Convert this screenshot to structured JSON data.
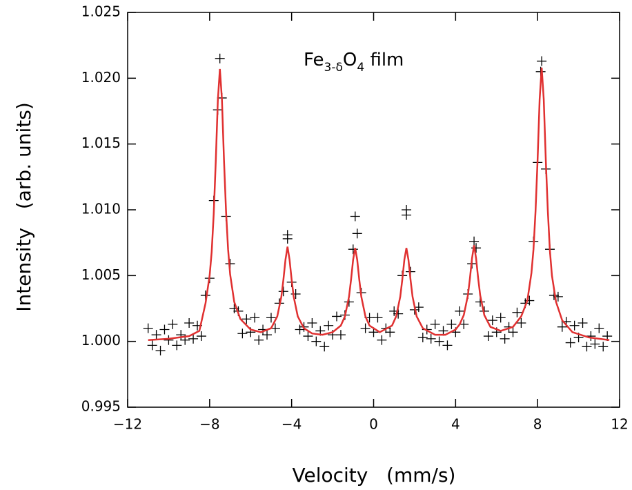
{
  "chart_data": {
    "type": "scatter",
    "annotation": [
      "Fe",
      "3-δ",
      "O",
      "4",
      " film"
    ],
    "x_label": "Velocity   (mm/s)",
    "y_label": "Intensity   (arb. units)",
    "xlim": [
      -12,
      12
    ],
    "ylim": [
      0.995,
      1.025
    ],
    "xticks": [
      {
        "value": -12,
        "label": "−12"
      },
      {
        "value": -8,
        "label": "−8"
      },
      {
        "value": -4,
        "label": "−4"
      },
      0,
      4,
      8,
      12
    ],
    "yticks": [
      0.995,
      {
        "value": 1,
        "label": "1.000"
      },
      1.005,
      {
        "value": 1.01,
        "label": "1.010"
      },
      1.015,
      {
        "value": 1.02,
        "label": "1.020"
      },
      1.025
    ],
    "series": [
      {
        "type": "scatter",
        "color": "#000000",
        "x": [
          -11.0,
          -10.8,
          -10.6,
          -10.4,
          -10.2,
          -10.0,
          -9.8,
          -9.6,
          -9.4,
          -9.2,
          -9.0,
          -8.8,
          -8.6,
          -8.4,
          -8.2,
          -8.0,
          -7.8,
          -7.6,
          -7.4,
          -7.2,
          -7.0,
          -6.8,
          -6.6,
          -6.4,
          -6.2,
          -6.0,
          -5.8,
          -5.6,
          -5.4,
          -5.2,
          -5.0,
          -4.8,
          -4.6,
          -4.4,
          -4.2,
          -4.0,
          -3.8,
          -3.6,
          -3.4,
          -3.2,
          -3.0,
          -2.8,
          -2.6,
          -2.4,
          -2.2,
          -2.0,
          -1.8,
          -1.6,
          -1.4,
          -1.2,
          -1.0,
          -0.8,
          -0.6,
          -0.4,
          -0.2,
          0.0,
          0.2,
          0.4,
          0.6,
          0.8,
          1.0,
          1.2,
          1.4,
          1.6,
          1.8,
          2.0,
          2.2,
          2.4,
          2.6,
          2.8,
          3.0,
          3.2,
          3.4,
          3.6,
          3.8,
          4.0,
          4.2,
          4.4,
          4.6,
          4.8,
          5.0,
          5.2,
          5.4,
          5.6,
          5.8,
          6.0,
          6.2,
          6.4,
          6.6,
          6.8,
          7.0,
          7.2,
          7.4,
          7.6,
          7.8,
          8.0,
          8.2,
          8.4,
          8.6,
          8.8,
          9.0,
          9.2,
          9.4,
          9.6,
          9.8,
          10.0,
          10.2,
          10.4,
          10.6,
          10.8,
          11.0,
          11.2,
          11.4,
          -7.5,
          -4.2,
          -0.9,
          1.6,
          4.9,
          8.15
        ],
        "values": [
          1.001,
          0.9997,
          1.0005,
          0.9993,
          1.0009,
          1.0001,
          1.0013,
          0.9997,
          1.0005,
          1.0001,
          1.0014,
          1.0002,
          1.0012,
          1.0004,
          1.0035,
          1.0048,
          1.0107,
          1.0176,
          1.0185,
          1.0095,
          1.0059,
          1.0025,
          1.0023,
          1.0006,
          1.0017,
          1.0007,
          1.0018,
          1.0001,
          1.0009,
          1.0005,
          1.0018,
          1.001,
          1.0029,
          1.0038,
          1.0078,
          1.0045,
          1.0036,
          1.0009,
          1.0011,
          1.0004,
          1.0014,
          1.0,
          1.0008,
          0.9996,
          1.0012,
          1.0005,
          1.0019,
          1.0005,
          1.002,
          1.003,
          1.007,
          1.0082,
          1.0037,
          1.001,
          1.0018,
          1.0007,
          1.0018,
          1.0001,
          1.001,
          1.0007,
          1.0023,
          1.0021,
          1.005,
          1.0096,
          1.0053,
          1.0024,
          1.0026,
          1.0003,
          1.0009,
          1.0002,
          1.0013,
          1.0,
          1.0008,
          0.9997,
          1.0013,
          1.0007,
          1.0023,
          1.0013,
          1.0036,
          1.0059,
          1.0071,
          1.003,
          1.0023,
          1.0004,
          1.0016,
          1.0007,
          1.0018,
          1.0002,
          1.0011,
          1.0007,
          1.0022,
          1.0014,
          1.0029,
          1.0031,
          1.0076,
          1.0136,
          1.0213,
          1.0131,
          1.007,
          1.0035,
          1.0034,
          1.0011,
          1.0015,
          0.9999,
          1.0012,
          1.0003,
          1.0014,
          0.9996,
          1.0004,
          0.9998,
          1.001,
          0.9996,
          1.0004,
          1.0215,
          1.0081,
          1.0095,
          1.01,
          1.0076,
          1.0205
        ]
      },
      {
        "type": "line",
        "color": "#e03030",
        "x": [
          -11,
          -10,
          -9,
          -8.5,
          -8.2,
          -8,
          -7.9,
          -7.8,
          -7.7,
          -7.6,
          -7.5,
          -7.4,
          -7.3,
          -7.2,
          -7.1,
          -7.0,
          -6.8,
          -6.5,
          -6,
          -5.5,
          -5,
          -4.7,
          -4.5,
          -4.4,
          -4.3,
          -4.2,
          -4.1,
          -4.0,
          -3.9,
          -3.7,
          -3.4,
          -3,
          -2.5,
          -2,
          -1.6,
          -1.4,
          -1.2,
          -1.1,
          -1.0,
          -0.9,
          -0.8,
          -0.7,
          -0.6,
          -0.4,
          -0.2,
          0.3,
          0.9,
          1.1,
          1.3,
          1.4,
          1.5,
          1.6,
          1.7,
          1.8,
          1.9,
          2.1,
          2.4,
          3,
          3.5,
          4,
          4.2,
          4.4,
          4.6,
          4.7,
          4.8,
          4.9,
          5.0,
          5.1,
          5.2,
          5.4,
          5.7,
          6.2,
          6.8,
          7.2,
          7.5,
          7.7,
          7.8,
          7.9,
          8.0,
          8.1,
          8.2,
          8.3,
          8.4,
          8.5,
          8.6,
          8.7,
          8.9,
          9.2,
          9.7,
          10.5,
          11.5
        ],
        "values": [
          1.0001,
          1.0002,
          1.0004,
          1.0008,
          1.0029,
          1.005,
          1.0068,
          1.0097,
          1.0137,
          1.0183,
          1.0207,
          1.0184,
          1.0138,
          1.0099,
          1.007,
          1.0051,
          1.003,
          1.0017,
          1.0009,
          1.0007,
          1.001,
          1.0019,
          1.0034,
          1.0047,
          1.0062,
          1.0072,
          1.0062,
          1.0047,
          1.0034,
          1.0019,
          1.001,
          1.0006,
          1.0005,
          1.0007,
          1.0012,
          1.0019,
          1.0034,
          1.0047,
          1.0062,
          1.0071,
          1.0062,
          1.0047,
          1.0034,
          1.0019,
          1.0012,
          1.0007,
          1.0012,
          1.0019,
          1.0034,
          1.0047,
          1.0062,
          1.0071,
          1.0062,
          1.0047,
          1.0034,
          1.0019,
          1.001,
          1.0005,
          1.0005,
          1.0009,
          1.0013,
          1.002,
          1.0035,
          1.0048,
          1.0063,
          1.0073,
          1.0063,
          1.0048,
          1.0035,
          1.002,
          1.0011,
          1.0008,
          1.0011,
          1.0019,
          1.0031,
          1.0052,
          1.007,
          1.0099,
          1.0138,
          1.0184,
          1.0208,
          1.0184,
          1.0138,
          1.0099,
          1.0069,
          1.005,
          1.003,
          1.0016,
          1.0007,
          1.0003,
          1.0001
        ]
      }
    ]
  }
}
